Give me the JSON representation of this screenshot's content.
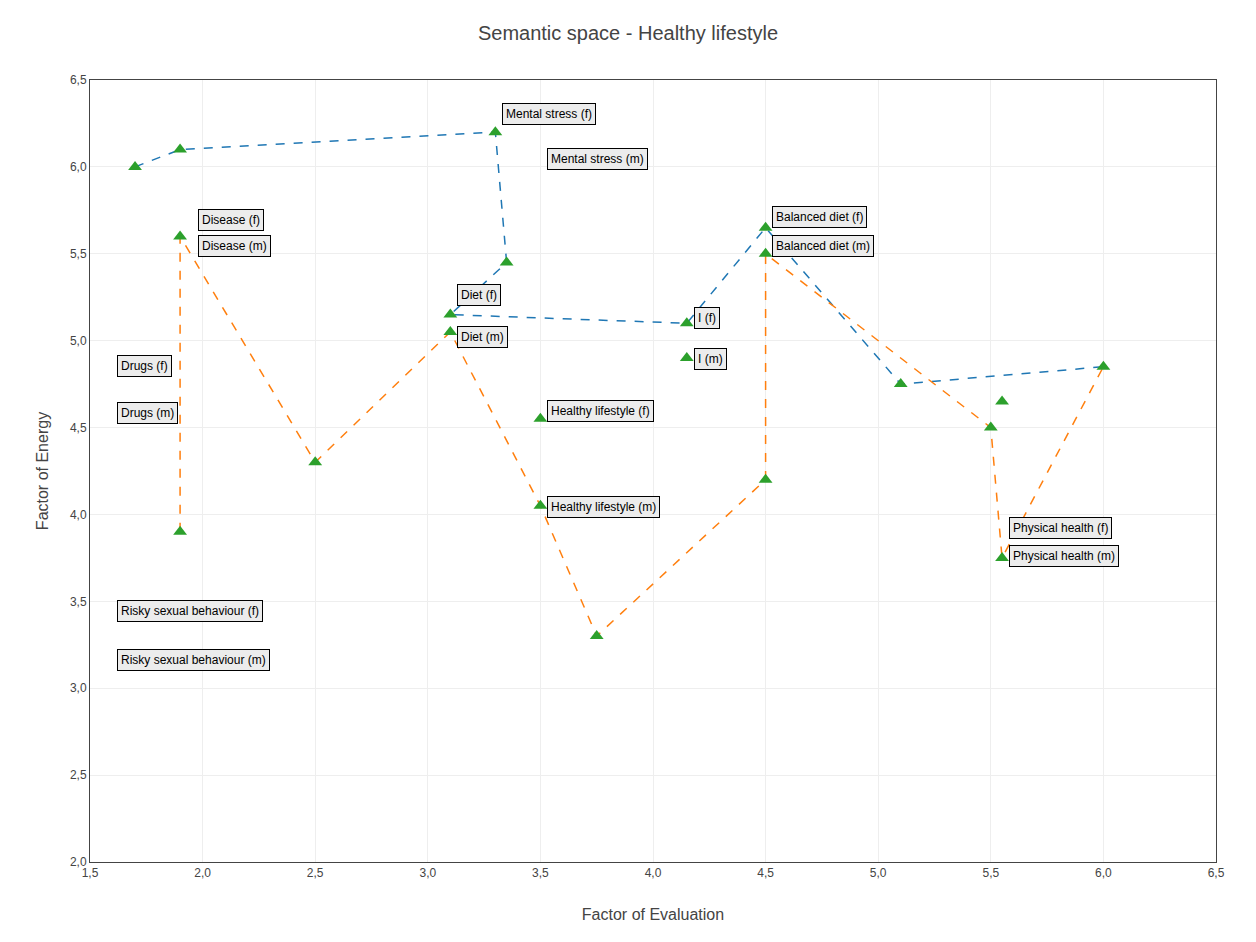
{
  "chart_data": {
    "type": "scatter",
    "title": "Semantic space - Healthy lifestyle",
    "xlabel": "Factor of Evaluation",
    "ylabel": "Factor of Energy",
    "xlim": [
      1.5,
      6.5
    ],
    "ylim": [
      2.0,
      6.5
    ],
    "xticks": [
      {
        "value": 1.5,
        "label": "1,5"
      },
      {
        "value": 2.0,
        "label": "2,0"
      },
      {
        "value": 2.5,
        "label": "2,5"
      },
      {
        "value": 3.0,
        "label": "3,0"
      },
      {
        "value": 3.5,
        "label": "3,5"
      },
      {
        "value": 4.0,
        "label": "4,0"
      },
      {
        "value": 4.5,
        "label": "4,5"
      },
      {
        "value": 5.0,
        "label": "5,0"
      },
      {
        "value": 5.5,
        "label": "5,5"
      },
      {
        "value": 6.0,
        "label": "6,0"
      },
      {
        "value": 6.5,
        "label": "6,5"
      }
    ],
    "yticks": [
      {
        "value": 2.0,
        "label": "2,0"
      },
      {
        "value": 2.5,
        "label": "2,5"
      },
      {
        "value": 3.0,
        "label": "3,0"
      },
      {
        "value": 3.5,
        "label": "3,5"
      },
      {
        "value": 4.0,
        "label": "4,0"
      },
      {
        "value": 4.5,
        "label": "4,5"
      },
      {
        "value": 5.0,
        "label": "5,0"
      },
      {
        "value": 5.5,
        "label": "5,5"
      },
      {
        "value": 6.0,
        "label": "6,0"
      },
      {
        "value": 6.5,
        "label": "6,5"
      }
    ],
    "grid": true,
    "series": [
      {
        "line_style": "dashed",
        "x": [
          1.7,
          1.9,
          3.3,
          3.35,
          3.1,
          4.15,
          4.5,
          5.1,
          6.0
        ],
        "values": [
          6.0,
          6.1,
          6.2,
          5.45,
          5.15,
          5.1,
          5.65,
          4.75,
          4.85
        ]
      },
      {
        "line_style": "dashed",
        "x": [
          1.9,
          1.9,
          2.5,
          3.1,
          3.5,
          3.75,
          4.5,
          4.5,
          5.5,
          5.55,
          6.0
        ],
        "values": [
          3.9,
          5.6,
          4.3,
          5.05,
          4.05,
          3.3,
          4.2,
          5.5,
          4.5,
          3.75,
          4.85
        ]
      },
      {
        "marker": "triangle-up",
        "x": [
          1.7,
          1.9,
          1.9,
          1.9,
          2.5,
          3.1,
          3.1,
          3.3,
          3.35,
          3.5,
          3.5,
          3.75,
          4.15,
          4.15,
          4.5,
          4.5,
          4.5,
          5.1,
          5.5,
          5.55,
          5.55,
          6.0
        ],
        "values": [
          6.0,
          6.1,
          5.6,
          3.9,
          4.3,
          5.15,
          5.05,
          6.2,
          5.45,
          4.55,
          4.05,
          3.3,
          5.1,
          4.9,
          4.2,
          5.65,
          5.5,
          4.75,
          4.5,
          4.65,
          3.75,
          4.85
        ]
      }
    ],
    "annotations": [
      {
        "text": "Mental stress (f)",
        "x": 3.33,
        "y": 6.24
      },
      {
        "text": "Mental stress (m)",
        "x": 3.53,
        "y": 5.98
      },
      {
        "text": "Disease (f)",
        "x": 1.98,
        "y": 5.63
      },
      {
        "text": "Disease (m)",
        "x": 1.98,
        "y": 5.48
      },
      {
        "text": "Diet (f)",
        "x": 3.13,
        "y": 5.2
      },
      {
        "text": "Diet (m)",
        "x": 3.13,
        "y": 4.96
      },
      {
        "text": "Drugs (f)",
        "x": 1.62,
        "y": 4.79
      },
      {
        "text": "Drugs (m)",
        "x": 1.62,
        "y": 4.52
      },
      {
        "text": "Balanced diet (f)",
        "x": 4.53,
        "y": 5.65
      },
      {
        "text": "Balanced diet (m)",
        "x": 4.53,
        "y": 5.48
      },
      {
        "text": "I (f)",
        "x": 4.18,
        "y": 5.07
      },
      {
        "text": "I (m)",
        "x": 4.18,
        "y": 4.83
      },
      {
        "text": "Healthy lifestyle (f)",
        "x": 3.53,
        "y": 4.53
      },
      {
        "text": "Healthy lifestyle (m)",
        "x": 3.53,
        "y": 3.98
      },
      {
        "text": "Physical health (f)",
        "x": 5.58,
        "y": 3.86
      },
      {
        "text": "Physical health (m)",
        "x": 5.58,
        "y": 3.7
      },
      {
        "text": "Risky sexual behaviour (f)",
        "x": 1.62,
        "y": 3.38
      },
      {
        "text": "Risky sexual behaviour (m)",
        "x": 1.62,
        "y": 3.1
      }
    ]
  }
}
